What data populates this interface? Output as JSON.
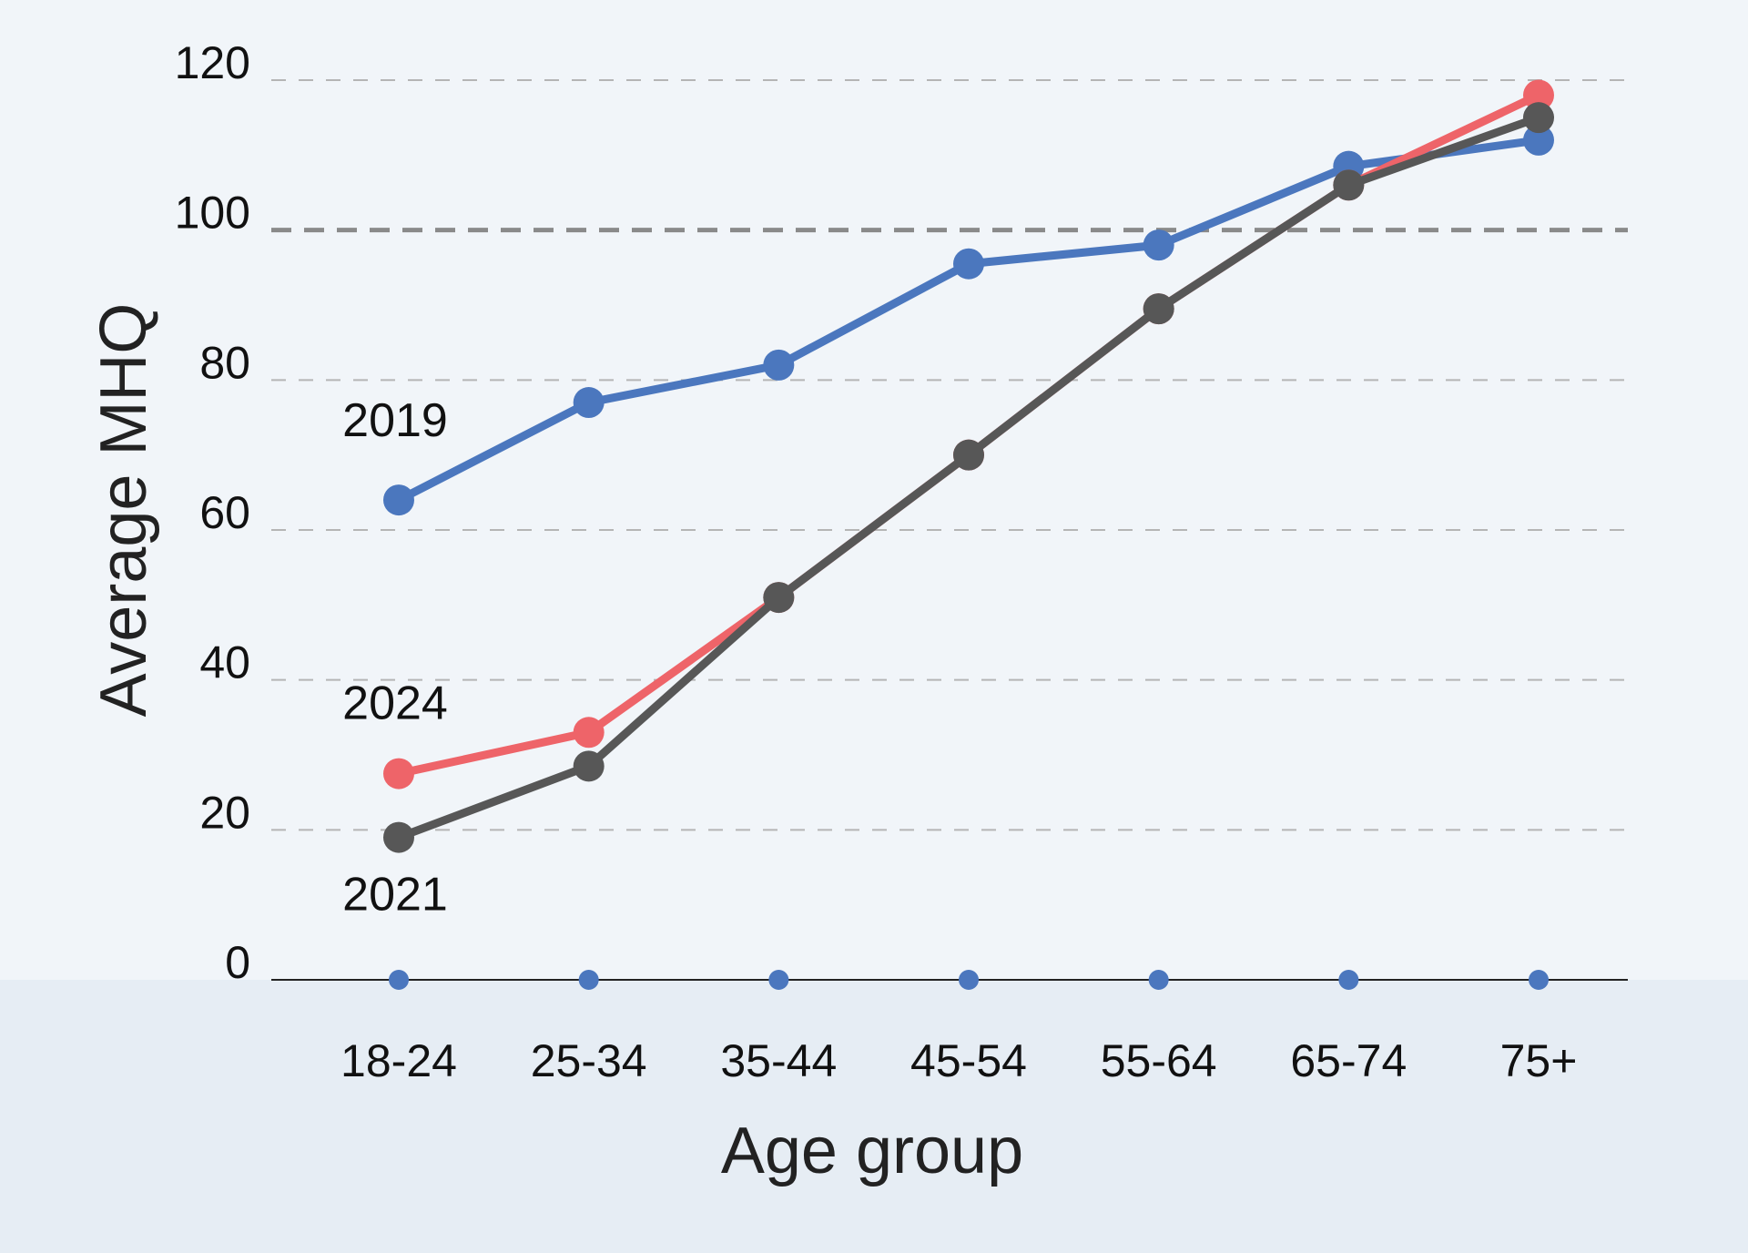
{
  "chart_data": {
    "type": "line",
    "title": "",
    "xlabel": "Age group",
    "ylabel": "Average MHQ",
    "categories": [
      "18-24",
      "25-34",
      "35-44",
      "45-54",
      "55-64",
      "65-74",
      "75+"
    ],
    "ylim": [
      0,
      120
    ],
    "yticks": [
      0,
      20,
      40,
      60,
      80,
      100,
      120
    ],
    "reference_line": 100,
    "grid": "horizontal dashed",
    "series": [
      {
        "name": "2019",
        "color": "#4b77be",
        "values": [
          64,
          77,
          82,
          95.5,
          98,
          108.5,
          112
        ]
      },
      {
        "name": "2024",
        "color": "#ee6469",
        "values": [
          27.5,
          33,
          51,
          70,
          89.5,
          106,
          118
        ]
      },
      {
        "name": "2021",
        "color": "#575757",
        "values": [
          19,
          28.5,
          51,
          70,
          89.5,
          106,
          115
        ]
      }
    ],
    "baseline_marker_color": "#4b77be",
    "band_color": "#e6edf4"
  }
}
